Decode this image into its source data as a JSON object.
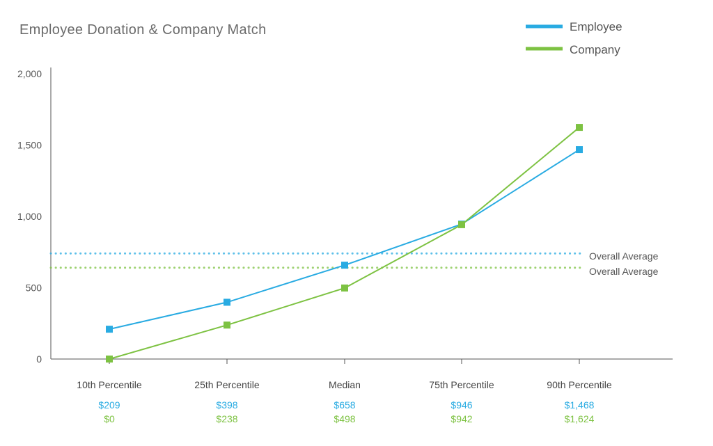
{
  "chart_data": {
    "type": "line",
    "title": "Employee Donation & Company Match",
    "categories": [
      "10th Percentile",
      "25th Percentile",
      "Median",
      "75th Percentile",
      "90th Percentile"
    ],
    "ylim": [
      0,
      2000
    ],
    "yticks": [
      "0",
      "500",
      "1,000",
      "1,500",
      "2,000"
    ],
    "ytick_values": [
      0,
      500,
      1000,
      1500,
      2000
    ],
    "grid": false,
    "legend_position": "top-right",
    "series": [
      {
        "name": "Employee",
        "color": "#29abe2",
        "values": [
          209,
          398,
          658,
          946,
          1468
        ],
        "labels": [
          "$209",
          "$398",
          "$658",
          "$946",
          "$1,468"
        ],
        "average": 740,
        "average_label": "Overall Average"
      },
      {
        "name": "Company",
        "color": "#7dc242",
        "values": [
          0,
          238,
          498,
          942,
          1624
        ],
        "labels": [
          "$0",
          "$238",
          "$498",
          "$942",
          "$1,624"
        ],
        "average": 640,
        "average_label": "Overall Average"
      }
    ]
  }
}
